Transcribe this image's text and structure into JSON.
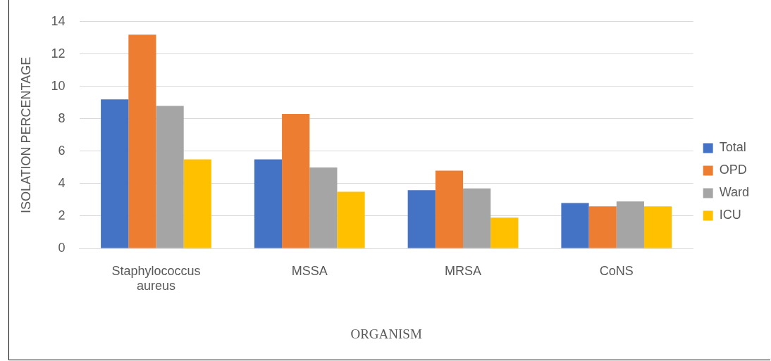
{
  "chart_data": {
    "type": "bar",
    "xlabel": "ORGANISM",
    "ylabel": "ISOLATION PERCENTAGE",
    "categories": [
      "Staphylococcus aureus",
      "MSSA",
      "MRSA",
      "CoNS"
    ],
    "series": [
      {
        "name": "Total",
        "color": "#4472c4",
        "values": [
          9.2,
          5.5,
          3.6,
          2.8
        ]
      },
      {
        "name": "OPD",
        "color": "#ed7d31",
        "values": [
          13.2,
          8.3,
          4.8,
          2.6
        ]
      },
      {
        "name": "Ward",
        "color": "#a5a5a5",
        "values": [
          8.8,
          5.0,
          3.7,
          2.9
        ]
      },
      {
        "name": "ICU",
        "color": "#ffc000",
        "values": [
          5.5,
          3.5,
          1.9,
          2.6
        ]
      }
    ],
    "ylim": [
      0,
      14
    ],
    "yticks": [
      0,
      2,
      4,
      6,
      8,
      10,
      12,
      14
    ],
    "grid": "y",
    "legend": "right"
  }
}
